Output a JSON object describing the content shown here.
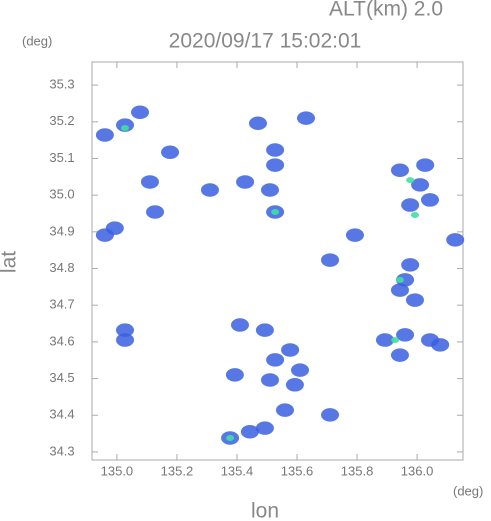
{
  "chart_data": {
    "type": "scatter",
    "title": "2020/09/17 15:02:01",
    "subtitle": "ALT(km) 2.0",
    "x_label": "lon",
    "y_label": "lat",
    "x_unit": "(deg)",
    "y_unit": "(deg)",
    "xlim": [
      134.917,
      136.153
    ],
    "ylim": [
      34.278,
      35.363
    ],
    "xticks": [
      {
        "value": 135.0,
        "label": "135.0"
      },
      {
        "value": 135.2,
        "label": "135.2"
      },
      {
        "value": 135.4,
        "label": "135.4"
      },
      {
        "value": 135.6,
        "label": "135.6"
      },
      {
        "value": 135.8,
        "label": "135.8"
      },
      {
        "value": 136.0,
        "label": "136.0"
      }
    ],
    "yticks": [
      34.3,
      34.4,
      34.5,
      34.6,
      34.7,
      34.8,
      34.9,
      {
        "value": 35.0,
        "label": "35.0"
      },
      35.1,
      35.2,
      35.3
    ],
    "series": [
      {
        "color": "#3a5fe0",
        "x": [
          135.943,
          136.027,
          136.043,
          135.977,
          136.01,
          135.96,
          135.977,
          135.943,
          135.993,
          135.893,
          135.96,
          136.043,
          136.077,
          135.943,
          136.127,
          134.96,
          135.027,
          135.077,
          135.177,
          135.11,
          135.127,
          134.96,
          134.993,
          135.527,
          135.527,
          135.51,
          135.527,
          135.427,
          135.31,
          135.47,
          135.63,
          135.793,
          135.71,
          135.493,
          135.527,
          135.51,
          135.577,
          135.61,
          135.593,
          135.56,
          135.41,
          135.393,
          135.71,
          135.443,
          135.377,
          135.493,
          135.027,
          135.027
        ],
        "values": [
          35.068,
          35.082,
          34.987,
          34.973,
          35.028,
          34.769,
          34.81,
          34.741,
          34.714,
          34.605,
          34.619,
          34.605,
          34.592,
          34.564,
          34.878,
          35.164,
          35.191,
          35.226,
          35.117,
          35.036,
          34.954,
          34.891,
          34.91,
          35.123,
          35.082,
          35.014,
          34.954,
          35.036,
          35.014,
          35.196,
          35.21,
          34.891,
          34.823,
          34.632,
          34.551,
          34.496,
          34.578,
          34.523,
          34.483,
          34.414,
          34.646,
          34.51,
          34.401,
          34.355,
          34.338,
          34.365,
          34.632,
          34.605
        ]
      },
      {
        "color": "#3ee0a0",
        "x": [
          135.993,
          135.927,
          135.527,
          135.977,
          135.377,
          135.027,
          135.943
        ],
        "values": [
          34.946,
          34.605,
          34.954,
          35.041,
          34.338,
          35.183,
          34.769
        ]
      }
    ]
  }
}
